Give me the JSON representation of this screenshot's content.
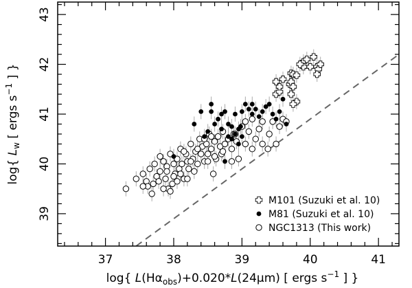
{
  "chart_data": {
    "type": "scatter",
    "xlim": [
      36.3,
      41.3
    ],
    "ylim": [
      38.35,
      43.25
    ],
    "x_ticks": [
      37,
      38,
      39,
      40,
      41
    ],
    "y_ticks": [
      39,
      40,
      41,
      42,
      43
    ],
    "xlabel": {
      "prefix": "log{ ",
      "L1": "L",
      "part1": "(Hα",
      "sub": "obs",
      "part2": ")+0.020*",
      "L2": "L",
      "part3": "(24μm)  [ ergs s",
      "sup": "−1",
      "part4": " ] }"
    },
    "ylabel": {
      "prefix": "log{ ",
      "L": "L",
      "sub": "w",
      "part1": "  [ ergs s",
      "sup": "−1",
      "part2": " ] }"
    },
    "reference_line": {
      "style": "dashed",
      "slope": 1,
      "intercept": 0.9
    },
    "legend_position": "bottom-right",
    "series": [
      {
        "name": "M101 (Suzuki et al. 10)",
        "marker": "open-cross",
        "points": [
          [
            39.5,
            41.4
          ],
          [
            39.55,
            41.45
          ],
          [
            39.5,
            41.65
          ],
          [
            39.6,
            41.7
          ],
          [
            39.55,
            41.55
          ],
          [
            39.7,
            41.6
          ],
          [
            39.72,
            41.82
          ],
          [
            39.75,
            41.8
          ],
          [
            39.72,
            41.65
          ],
          [
            39.75,
            41.55
          ],
          [
            39.72,
            41.4
          ],
          [
            39.8,
            41.25
          ],
          [
            39.75,
            41.2
          ],
          [
            39.8,
            41.78
          ],
          [
            39.9,
            42.05
          ],
          [
            39.9,
            41.95
          ],
          [
            39.95,
            42.1
          ],
          [
            40.0,
            41.95
          ],
          [
            40.05,
            42.15
          ],
          [
            40.1,
            41.95
          ],
          [
            40.12,
            41.9
          ],
          [
            40.15,
            42.0
          ],
          [
            40.1,
            41.8
          ],
          [
            39.85,
            42.0
          ]
        ]
      },
      {
        "name": "M81 (Suzuki et al. 10)",
        "marker": "filled-circle",
        "points": [
          [
            38.55,
            41.05
          ],
          [
            38.6,
            40.8
          ],
          [
            38.5,
            40.65
          ],
          [
            38.45,
            40.55
          ],
          [
            38.65,
            40.9
          ],
          [
            38.7,
            41.0
          ],
          [
            38.75,
            41.05
          ],
          [
            38.8,
            40.8
          ],
          [
            38.85,
            40.75
          ],
          [
            38.9,
            41.0
          ],
          [
            38.9,
            40.6
          ],
          [
            38.95,
            40.7
          ],
          [
            39.0,
            41.05
          ],
          [
            39.05,
            41.2
          ],
          [
            39.1,
            41.1
          ],
          [
            39.15,
            41.0
          ],
          [
            39.2,
            41.1
          ],
          [
            39.25,
            40.95
          ],
          [
            39.3,
            41.05
          ],
          [
            39.35,
            41.15
          ],
          [
            39.4,
            41.2
          ],
          [
            39.45,
            41.0
          ],
          [
            39.5,
            40.9
          ],
          [
            39.55,
            41.05
          ],
          [
            39.6,
            41.3
          ],
          [
            39.65,
            40.8
          ],
          [
            39.0,
            40.55
          ],
          [
            38.98,
            40.75
          ],
          [
            38.4,
            41.05
          ],
          [
            38.3,
            40.8
          ],
          [
            38.8,
            40.55
          ],
          [
            38.95,
            40.4
          ],
          [
            38.75,
            40.05
          ],
          [
            38.55,
            41.2
          ],
          [
            39.15,
            41.2
          ],
          [
            38.85,
            40.5
          ],
          [
            38.0,
            40.15
          ],
          [
            38.7,
            40.7
          ]
        ]
      },
      {
        "name": "NGC1313 (This work)",
        "marker": "open-circle",
        "points": [
          [
            37.3,
            39.5
          ],
          [
            37.55,
            39.8
          ],
          [
            37.6,
            39.65
          ],
          [
            37.62,
            39.55
          ],
          [
            37.65,
            39.9
          ],
          [
            37.7,
            39.6
          ],
          [
            37.72,
            40.0
          ],
          [
            37.75,
            39.75
          ],
          [
            37.8,
            39.85
          ],
          [
            37.85,
            40.05
          ],
          [
            37.88,
            39.7
          ],
          [
            37.9,
            39.95
          ],
          [
            37.92,
            39.5
          ],
          [
            37.95,
            40.2
          ],
          [
            37.98,
            39.6
          ],
          [
            38.0,
            40.0
          ],
          [
            38.02,
            39.8
          ],
          [
            38.05,
            40.1
          ],
          [
            38.08,
            39.9
          ],
          [
            38.1,
            40.3
          ],
          [
            38.12,
            40.0
          ],
          [
            38.15,
            39.7
          ],
          [
            38.18,
            40.2
          ],
          [
            38.2,
            40.05
          ],
          [
            38.22,
            39.9
          ],
          [
            38.25,
            40.4
          ],
          [
            38.28,
            40.1
          ],
          [
            38.3,
            39.85
          ],
          [
            38.32,
            40.25
          ],
          [
            38.35,
            40.0
          ],
          [
            38.38,
            40.5
          ],
          [
            38.4,
            40.2
          ],
          [
            38.42,
            40.35
          ],
          [
            38.45,
            40.05
          ],
          [
            38.48,
            40.4
          ],
          [
            38.5,
            40.2
          ],
          [
            38.52,
            40.6
          ],
          [
            38.55,
            40.3
          ],
          [
            38.58,
            39.8
          ],
          [
            38.6,
            40.45
          ],
          [
            38.62,
            40.1
          ],
          [
            38.65,
            40.55
          ],
          [
            38.68,
            40.35
          ],
          [
            38.7,
            40.2
          ],
          [
            38.72,
            40.65
          ],
          [
            38.75,
            40.4
          ],
          [
            38.8,
            40.5
          ],
          [
            38.85,
            40.3
          ],
          [
            38.88,
            40.6
          ],
          [
            38.92,
            40.45
          ],
          [
            38.95,
            40.1
          ],
          [
            39.0,
            40.75
          ],
          [
            39.05,
            40.4
          ],
          [
            39.1,
            40.65
          ],
          [
            39.15,
            40.9
          ],
          [
            39.2,
            40.5
          ],
          [
            39.25,
            40.7
          ],
          [
            39.3,
            40.4
          ],
          [
            39.4,
            40.6
          ],
          [
            39.45,
            40.85
          ],
          [
            39.5,
            40.4
          ],
          [
            39.55,
            40.75
          ],
          [
            39.6,
            40.9
          ],
          [
            39.65,
            40.85
          ],
          [
            39.38,
            40.3
          ],
          [
            38.9,
            40.6
          ],
          [
            37.55,
            39.55
          ],
          [
            37.95,
            39.45
          ],
          [
            38.2,
            39.7
          ],
          [
            37.85,
            39.5
          ],
          [
            37.68,
            39.4
          ],
          [
            37.78,
            39.65
          ],
          [
            38.05,
            39.65
          ],
          [
            38.15,
            40.25
          ],
          [
            38.45,
            40.5
          ],
          [
            38.85,
            40.05
          ],
          [
            39.05,
            40.85
          ],
          [
            38.6,
            40.15
          ],
          [
            37.45,
            39.7
          ],
          [
            37.8,
            40.15
          ],
          [
            38.25,
            40.05
          ],
          [
            38.55,
            40.55
          ],
          [
            38.72,
            40.25
          ],
          [
            39.3,
            40.85
          ],
          [
            38.1,
            39.8
          ],
          [
            38.35,
            40.3
          ],
          [
            38.5,
            40.05
          ],
          [
            39.15,
            40.3
          ],
          [
            38.0,
            39.75
          ],
          [
            37.9,
            39.85
          ]
        ]
      }
    ]
  }
}
